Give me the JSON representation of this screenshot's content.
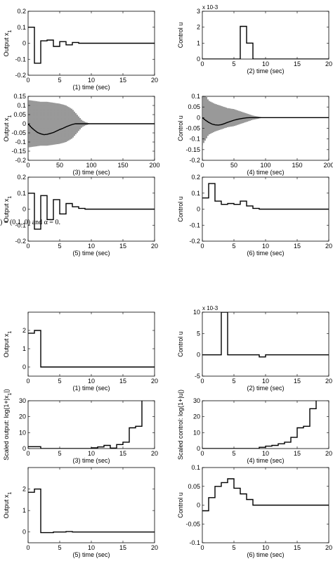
{
  "caption_text": ") = (0.1, 0) and α = 0.",
  "chart_data": [
    {
      "id": "f1p1",
      "type": "line",
      "step": true,
      "title": "",
      "xlabel": "(1) time (sec)",
      "ylabel": "Output x",
      "ylabel_sub": "1",
      "scale_note": "",
      "xlim": [
        0,
        20
      ],
      "ylim": [
        -0.2,
        0.2
      ],
      "xticks": [
        0,
        5,
        10,
        15,
        20
      ],
      "xticklabels": [
        "0",
        "5",
        "10",
        "15",
        "20"
      ],
      "yticks": [
        -0.2,
        -0.1,
        0,
        0.1,
        0.2
      ],
      "yticklabels": [
        "-0.2",
        "-0.1",
        "0",
        "0.1",
        "0.2"
      ],
      "series": [
        {
          "x": [
            0,
            1,
            1,
            2,
            2,
            3,
            3,
            4,
            4,
            5,
            5,
            6,
            6,
            7,
            7,
            8,
            8,
            20
          ],
          "y": [
            0.1,
            0.1,
            -0.125,
            -0.125,
            0.015,
            0.015,
            0.02,
            0.02,
            -0.02,
            -0.02,
            0.01,
            0.01,
            -0.01,
            -0.01,
            0.005,
            0.005,
            0,
            0
          ]
        }
      ]
    },
    {
      "id": "f1p2",
      "type": "line",
      "step": true,
      "title": "",
      "xlabel": "(2) time (sec)",
      "ylabel": "Control u",
      "ylabel_sub": "",
      "scale_note": "x 10-3",
      "xlim": [
        0,
        20
      ],
      "ylim": [
        0,
        3
      ],
      "xticks": [
        0,
        5,
        10,
        15,
        20
      ],
      "xticklabels": [
        "0",
        "5",
        "10",
        "15",
        "20"
      ],
      "yticks": [
        0,
        1,
        2,
        3
      ],
      "yticklabels": [
        "0",
        "1",
        "2",
        "3"
      ],
      "series": [
        {
          "x": [
            0,
            6,
            6,
            7,
            7,
            8,
            8,
            20
          ],
          "y": [
            0,
            0,
            2.05,
            2.05,
            1,
            1,
            0,
            0
          ]
        }
      ]
    },
    {
      "id": "f1p3",
      "type": "line",
      "step": false,
      "title": "",
      "xlabel": "(3) time (sec)",
      "ylabel": "Output x",
      "ylabel_sub": "1",
      "scale_note": "",
      "xlim": [
        0,
        200
      ],
      "ylim": [
        -0.2,
        0.15
      ],
      "xticks": [
        0,
        50,
        100,
        150,
        200
      ],
      "xticklabels": [
        "0",
        "50",
        "100",
        "150",
        "200"
      ],
      "yticks": [
        -0.2,
        -0.15,
        -0.1,
        -0.05,
        0,
        0.05,
        0.1,
        0.15
      ],
      "yticklabels": [
        "-0.2",
        "-0.15",
        "-0.1",
        "-0.05",
        "0",
        "0.05",
        "0.1",
        "0.15"
      ],
      "series": [
        {
          "x": [
            0,
            5,
            10,
            15,
            20,
            25,
            30,
            35,
            40,
            45,
            50,
            55,
            60,
            65,
            70,
            75,
            80,
            85,
            90,
            95,
            100,
            110,
            120,
            150,
            200
          ],
          "y": [
            0,
            -0.02,
            -0.035,
            -0.048,
            -0.055,
            -0.06,
            -0.058,
            -0.053,
            -0.048,
            -0.04,
            -0.032,
            -0.025,
            -0.017,
            -0.01,
            -0.004,
            0,
            0,
            0,
            0,
            0,
            0,
            0,
            0,
            0,
            0
          ]
        },
        {
          "x": [
            0,
            10,
            20,
            30,
            40,
            50,
            60,
            70,
            80,
            85,
            90,
            95,
            100,
            110,
            200
          ],
          "y": [
            0.13,
            0.125,
            0.12,
            0.12,
            0.115,
            0.11,
            0.1,
            0.08,
            0.04,
            0.02,
            0.01,
            0.004,
            0,
            0,
            0
          ],
          "envelope": true
        }
      ]
    },
    {
      "id": "f1p4",
      "type": "line",
      "step": false,
      "title": "",
      "xlabel": "(4) time (sec)",
      "ylabel": "Control u",
      "ylabel_sub": "",
      "scale_note": "",
      "xlim": [
        0,
        200
      ],
      "ylim": [
        -0.2,
        0.1
      ],
      "xticks": [
        0,
        50,
        100,
        150,
        200
      ],
      "xticklabels": [
        "0",
        "50",
        "100",
        "150",
        "200"
      ],
      "yticks": [
        -0.2,
        -0.15,
        -0.1,
        -0.05,
        0,
        0.05,
        0.1
      ],
      "yticklabels": [
        "-0.2",
        "-0.15",
        "-0.1",
        "-0.05",
        "0",
        "0.05",
        "0.1"
      ],
      "series": [
        {
          "x": [
            0,
            5,
            10,
            15,
            20,
            25,
            30,
            35,
            40,
            45,
            50,
            55,
            60,
            65,
            70,
            75,
            80,
            85,
            90,
            200
          ],
          "y": [
            0,
            -0.012,
            -0.022,
            -0.03,
            -0.034,
            -0.035,
            -0.033,
            -0.028,
            -0.022,
            -0.017,
            -0.012,
            -0.008,
            -0.005,
            -0.003,
            -0.001,
            0,
            0,
            0,
            0,
            0
          ]
        },
        {
          "x": [
            0,
            10,
            20,
            30,
            40,
            50,
            60,
            70,
            80,
            90,
            95,
            100,
            200
          ],
          "y": [
            0.13,
            0.08,
            0.065,
            0.055,
            0.045,
            0.04,
            0.03,
            0.02,
            0.01,
            0.004,
            0.001,
            0,
            0
          ],
          "envelope": true
        }
      ]
    },
    {
      "id": "f1p5",
      "type": "line",
      "step": true,
      "title": "",
      "xlabel": "(5) time (sec)",
      "ylabel": "Output x",
      "ylabel_sub": "1",
      "scale_note": "",
      "xlim": [
        0,
        20
      ],
      "ylim": [
        -0.2,
        0.2
      ],
      "xticks": [
        0,
        5,
        10,
        15,
        20
      ],
      "xticklabels": [
        "0",
        "5",
        "10",
        "15",
        "20"
      ],
      "yticks": [
        -0.2,
        -0.1,
        0,
        0.1,
        0.2
      ],
      "yticklabels": [
        "-0.2",
        "-0.1",
        "0",
        "0.1",
        "0.2"
      ],
      "series": [
        {
          "x": [
            0,
            1,
            1,
            2,
            2,
            3,
            3,
            4,
            4,
            5,
            5,
            6,
            6,
            7,
            7,
            8,
            8,
            9,
            9,
            20
          ],
          "y": [
            0.1,
            0.1,
            -0.125,
            -0.125,
            0.085,
            0.085,
            -0.065,
            -0.065,
            0.06,
            0.06,
            -0.03,
            -0.03,
            0.035,
            0.035,
            0.015,
            0.015,
            0.005,
            0.005,
            0,
            0
          ]
        }
      ]
    },
    {
      "id": "f1p6",
      "type": "line",
      "step": true,
      "title": "",
      "xlabel": "(6) time (sec)",
      "ylabel": "Control u",
      "ylabel_sub": "",
      "scale_note": "",
      "xlim": [
        0,
        20
      ],
      "ylim": [
        -0.2,
        0.2
      ],
      "xticks": [
        0,
        5,
        10,
        15,
        20
      ],
      "xticklabels": [
        "0",
        "5",
        "10",
        "15",
        "20"
      ],
      "yticks": [
        -0.2,
        -0.1,
        0,
        0.1,
        0.2
      ],
      "yticklabels": [
        "-0.2",
        "-0.1",
        "0",
        "0.1",
        "0.2"
      ],
      "series": [
        {
          "x": [
            0,
            1,
            1,
            2,
            2,
            3,
            3,
            4,
            4,
            5,
            5,
            6,
            6,
            7,
            7,
            8,
            8,
            9,
            9,
            20
          ],
          "y": [
            0.07,
            0.07,
            0.16,
            0.16,
            0.05,
            0.05,
            0.03,
            0.03,
            0.035,
            0.035,
            0.03,
            0.03,
            0.05,
            0.05,
            0.02,
            0.02,
            0.005,
            0.005,
            0,
            0
          ]
        }
      ]
    },
    {
      "id": "f2p1",
      "type": "line",
      "step": true,
      "title": "",
      "xlabel": "(1) time (sec)",
      "ylabel": "Output x",
      "ylabel_sub": "1",
      "scale_note": "",
      "xlim": [
        0,
        20
      ],
      "ylim": [
        -0.5,
        3
      ],
      "xticks": [
        0,
        5,
        10,
        15,
        20
      ],
      "xticklabels": [
        "0",
        "5",
        "10",
        "15",
        "20"
      ],
      "yticks": [
        0,
        1,
        2
      ],
      "yticklabels": [
        "0",
        "1",
        "2"
      ],
      "series": [
        {
          "x": [
            0,
            1,
            1,
            2,
            2,
            20
          ],
          "y": [
            1.85,
            1.85,
            2,
            2,
            0,
            0
          ]
        }
      ]
    },
    {
      "id": "f2p2",
      "type": "line",
      "step": true,
      "title": "",
      "xlabel": "(2) time (sec)",
      "ylabel": "Control u",
      "ylabel_sub": "",
      "scale_note": "x 10-3",
      "xlim": [
        0,
        20
      ],
      "ylim": [
        -5,
        10
      ],
      "xticks": [
        0,
        5,
        10,
        15,
        20
      ],
      "xticklabels": [
        "0",
        "5",
        "10",
        "15",
        "20"
      ],
      "yticks": [
        -5,
        0,
        5,
        10
      ],
      "yticklabels": [
        "-5",
        "0",
        "5",
        "10"
      ],
      "series": [
        {
          "x": [
            0,
            3,
            3,
            4,
            4,
            9,
            9,
            10,
            10,
            20
          ],
          "y": [
            0,
            0,
            10,
            10,
            0,
            0,
            -0.5,
            -0.5,
            0,
            0
          ]
        }
      ]
    },
    {
      "id": "f2p3",
      "type": "line",
      "step": true,
      "title": "",
      "xlabel": "(3) time (sec)",
      "ylabel": "Scaled output: log(1+|x",
      "ylabel_sub": "1",
      "ylabel_after": "|)",
      "scale_note": "",
      "xlim": [
        0,
        20
      ],
      "ylim": [
        0,
        30
      ],
      "xticks": [
        0,
        5,
        10,
        15,
        20
      ],
      "xticklabels": [
        "0",
        "5",
        "10",
        "15",
        "20"
      ],
      "yticks": [
        0,
        10,
        20,
        30
      ],
      "yticklabels": [
        "0",
        "10",
        "20",
        "30"
      ],
      "series": [
        {
          "x": [
            0,
            2,
            2,
            10,
            10,
            11,
            11,
            12,
            12,
            13,
            13,
            14,
            14,
            15,
            15,
            16,
            16,
            17,
            17,
            18,
            18
          ],
          "y": [
            1.2,
            1.2,
            0,
            0,
            0.5,
            0.5,
            1,
            1,
            2,
            2,
            0.3,
            0.3,
            2.5,
            2.5,
            4,
            4,
            13,
            13,
            14,
            14,
            30
          ]
        }
      ]
    },
    {
      "id": "f2p4",
      "type": "line",
      "step": true,
      "title": "",
      "xlabel": "(4) time (sec)",
      "ylabel": "Scaled control: log(1+|u|)",
      "ylabel_sub": "",
      "scale_note": "",
      "xlim": [
        0,
        20
      ],
      "ylim": [
        0,
        30
      ],
      "xticks": [
        0,
        5,
        10,
        15,
        20
      ],
      "xticklabels": [
        "0",
        "5",
        "10",
        "15",
        "20"
      ],
      "yticks": [
        0,
        10,
        20,
        30
      ],
      "yticklabels": [
        "0",
        "10",
        "20",
        "30"
      ],
      "series": [
        {
          "x": [
            0,
            9,
            9,
            10,
            10,
            11,
            11,
            12,
            12,
            13,
            13,
            14,
            14,
            15,
            15,
            16,
            16,
            17,
            17,
            18,
            18
          ],
          "y": [
            0,
            0,
            0.8,
            0.8,
            1.5,
            1.5,
            2,
            2,
            3,
            3,
            4,
            4,
            7,
            7,
            13,
            13,
            14,
            14,
            25,
            25,
            30
          ]
        }
      ]
    },
    {
      "id": "f2p5",
      "type": "line",
      "step": true,
      "title": "",
      "xlabel": "(5) time (sec)",
      "ylabel": "Output x",
      "ylabel_sub": "1",
      "scale_note": "",
      "xlim": [
        0,
        20
      ],
      "ylim": [
        -0.5,
        3
      ],
      "xticks": [
        0,
        5,
        10,
        15,
        20
      ],
      "xticklabels": [
        "0",
        "5",
        "10",
        "15",
        "20"
      ],
      "yticks": [
        0,
        1,
        2
      ],
      "yticklabels": [
        "0",
        "1",
        "2"
      ],
      "series": [
        {
          "x": [
            0,
            1,
            1,
            2,
            2,
            4,
            4,
            6,
            6,
            7,
            7,
            20
          ],
          "y": [
            1.85,
            1.85,
            2,
            2,
            -0.03,
            -0.03,
            0,
            0,
            0.02,
            0.02,
            0,
            0
          ]
        }
      ]
    },
    {
      "id": "f2p6",
      "type": "line",
      "step": true,
      "title": "",
      "xlabel": "(6) time (sec)",
      "ylabel": "Control u",
      "ylabel_sub": "",
      "scale_note": "",
      "xlim": [
        0,
        20
      ],
      "ylim": [
        -0.1,
        0.1
      ],
      "xticks": [
        0,
        5,
        10,
        15,
        20
      ],
      "xticklabels": [
        "0",
        "5",
        "10",
        "15",
        "20"
      ],
      "yticks": [
        -0.1,
        -0.05,
        0,
        0.05,
        0.1
      ],
      "yticklabels": [
        "-0.1",
        "-0.05",
        "0",
        "0.05",
        "0.1"
      ],
      "series": [
        {
          "x": [
            0,
            1,
            1,
            2,
            2,
            3,
            3,
            4,
            4,
            5,
            5,
            6,
            6,
            7,
            7,
            8,
            8,
            20
          ],
          "y": [
            -0.015,
            -0.015,
            0.02,
            0.02,
            0.05,
            0.05,
            0.06,
            0.06,
            0.07,
            0.07,
            0.045,
            0.045,
            0.03,
            0.03,
            0.015,
            0.015,
            0,
            0
          ]
        }
      ]
    }
  ]
}
